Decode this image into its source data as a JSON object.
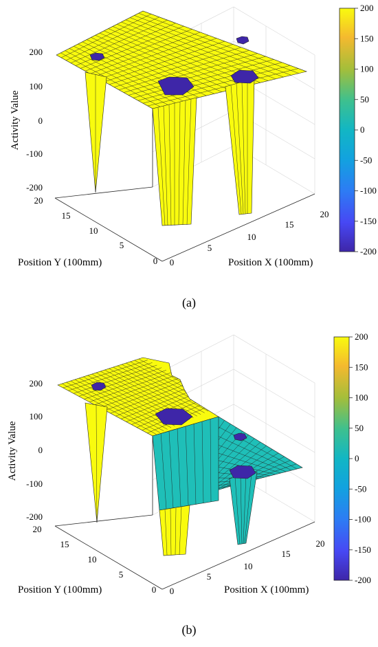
{
  "captions": [
    "(a)",
    "(b)"
  ],
  "colors": {
    "high": "#f9fb0e",
    "mid": "#1fbfb8",
    "low": "#3e26a8",
    "edge": "#222222"
  },
  "chart_data": [
    {
      "type": "surface3d",
      "title": "",
      "xlabel": "Position X (100mm)",
      "ylabel": "Position Y (100mm)",
      "zlabel": "Activity Value",
      "xlim": [
        0,
        20
      ],
      "ylim": [
        0,
        20
      ],
      "zlim": [
        -200,
        200
      ],
      "xticks": [
        "0",
        "5",
        "10",
        "15",
        "20"
      ],
      "yticks": [
        "0",
        "5",
        "10",
        "15",
        "20"
      ],
      "zticks": [
        "-200",
        "-100",
        "0",
        "100",
        "200"
      ],
      "grid": true,
      "plateau_value": 200,
      "obstacle_value": -200,
      "obstacles": [
        {
          "x": 2,
          "y": 18,
          "value": -200
        },
        {
          "x": 17,
          "y": 18,
          "value": -200
        },
        {
          "x": 9,
          "y": 9,
          "value": -200
        },
        {
          "x": 15,
          "y": 11,
          "value": -200
        }
      ],
      "colorbar": {
        "min": -200,
        "max": 200,
        "ticks": [
          "200",
          "150",
          "100",
          "50",
          "0",
          "-50",
          "-100",
          "-150",
          "-200"
        ]
      }
    },
    {
      "type": "surface3d",
      "title": "",
      "xlabel": "Position X (100mm)",
      "ylabel": "Position Y (100mm)",
      "zlabel": "Activity Value",
      "xlim": [
        0,
        20
      ],
      "ylim": [
        0,
        20
      ],
      "zlim": [
        -200,
        200
      ],
      "xticks": [
        "0",
        "5",
        "10",
        "15",
        "20"
      ],
      "yticks": [
        "0",
        "5",
        "10",
        "15",
        "20"
      ],
      "zticks": [
        "-200",
        "-100",
        "0",
        "100",
        "200"
      ],
      "grid": true,
      "plateau_value": 200,
      "explored_value": 0,
      "obstacle_value": -200,
      "explored_region": {
        "x_from": 12,
        "x_to": 20,
        "y_from": 5,
        "y_to": 15
      },
      "obstacles": [
        {
          "x": 2,
          "y": 18,
          "value": -200
        },
        {
          "x": 17,
          "y": 18,
          "value": -200
        },
        {
          "x": 9,
          "y": 9,
          "value": -200
        },
        {
          "x": 15,
          "y": 11,
          "value": -200
        }
      ],
      "colorbar": {
        "min": -200,
        "max": 200,
        "ticks": [
          "200",
          "150",
          "100",
          "50",
          "0",
          "-50",
          "-100",
          "-150",
          "-200"
        ]
      }
    }
  ]
}
